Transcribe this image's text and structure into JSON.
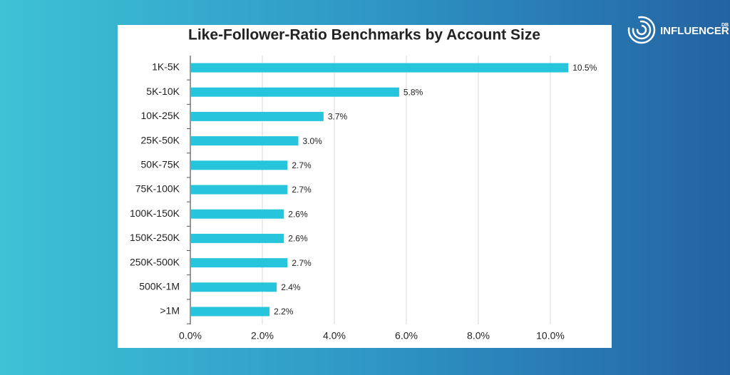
{
  "chart_data": {
    "type": "hbar",
    "title": "Like-Follower-Ratio Benchmarks by Account Size",
    "categories": [
      "1K-5K",
      "5K-10K",
      "10K-25K",
      "25K-50K",
      "50K-75K",
      "75K-100K",
      "100K-150K",
      "150K-250K",
      "250K-500K",
      "500K-1M",
      ">1M"
    ],
    "values": [
      10.5,
      5.8,
      3.7,
      3.0,
      2.7,
      2.7,
      2.6,
      2.6,
      2.7,
      2.4,
      2.2
    ],
    "value_labels": [
      "10.5%",
      "5.8%",
      "3.7%",
      "3.0%",
      "2.7%",
      "2.7%",
      "2.6%",
      "2.6%",
      "2.7%",
      "2.4%",
      "2.2%"
    ],
    "color": "#26c5db",
    "xlim": [
      0,
      11
    ],
    "xticks": [
      {
        "value": 0,
        "label": "0.0%"
      },
      {
        "value": 2,
        "label": "2.0%"
      },
      {
        "value": 4,
        "label": "4.0%"
      },
      {
        "value": 6,
        "label": "6.0%"
      },
      {
        "value": 8,
        "label": "8.0%"
      },
      {
        "value": 10,
        "label": "10.0%"
      }
    ],
    "grid": true
  },
  "logo": {
    "text": "INFLUENCER",
    "sup": "DB"
  }
}
